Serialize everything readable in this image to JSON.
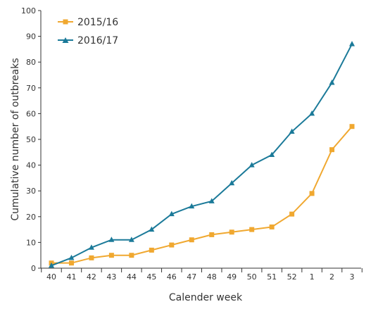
{
  "chart_data": {
    "type": "line",
    "title": "",
    "xlabel": "Calender week",
    "ylabel": "Cumulative number of outbreaks",
    "categories": [
      "40",
      "41",
      "42",
      "43",
      "44",
      "45",
      "46",
      "47",
      "48",
      "49",
      "50",
      "51",
      "52",
      "1",
      "2",
      "3"
    ],
    "ylim": [
      0,
      100
    ],
    "yticks": [
      0,
      10,
      20,
      30,
      40,
      50,
      60,
      70,
      80,
      90,
      100
    ],
    "grid": false,
    "legend_position": "top-left",
    "series": [
      {
        "name": "2015/16",
        "color": "#F0A830",
        "marker": "square",
        "values": [
          2,
          2,
          4,
          5,
          5,
          7,
          9,
          11,
          13,
          14,
          15,
          16,
          21,
          29,
          46,
          55
        ]
      },
      {
        "name": "2016/17",
        "color": "#1B7A99",
        "marker": "triangle",
        "values": [
          1,
          4,
          8,
          11,
          11,
          15,
          21,
          24,
          26,
          33,
          40,
          44,
          53,
          60,
          72,
          87
        ]
      }
    ]
  }
}
